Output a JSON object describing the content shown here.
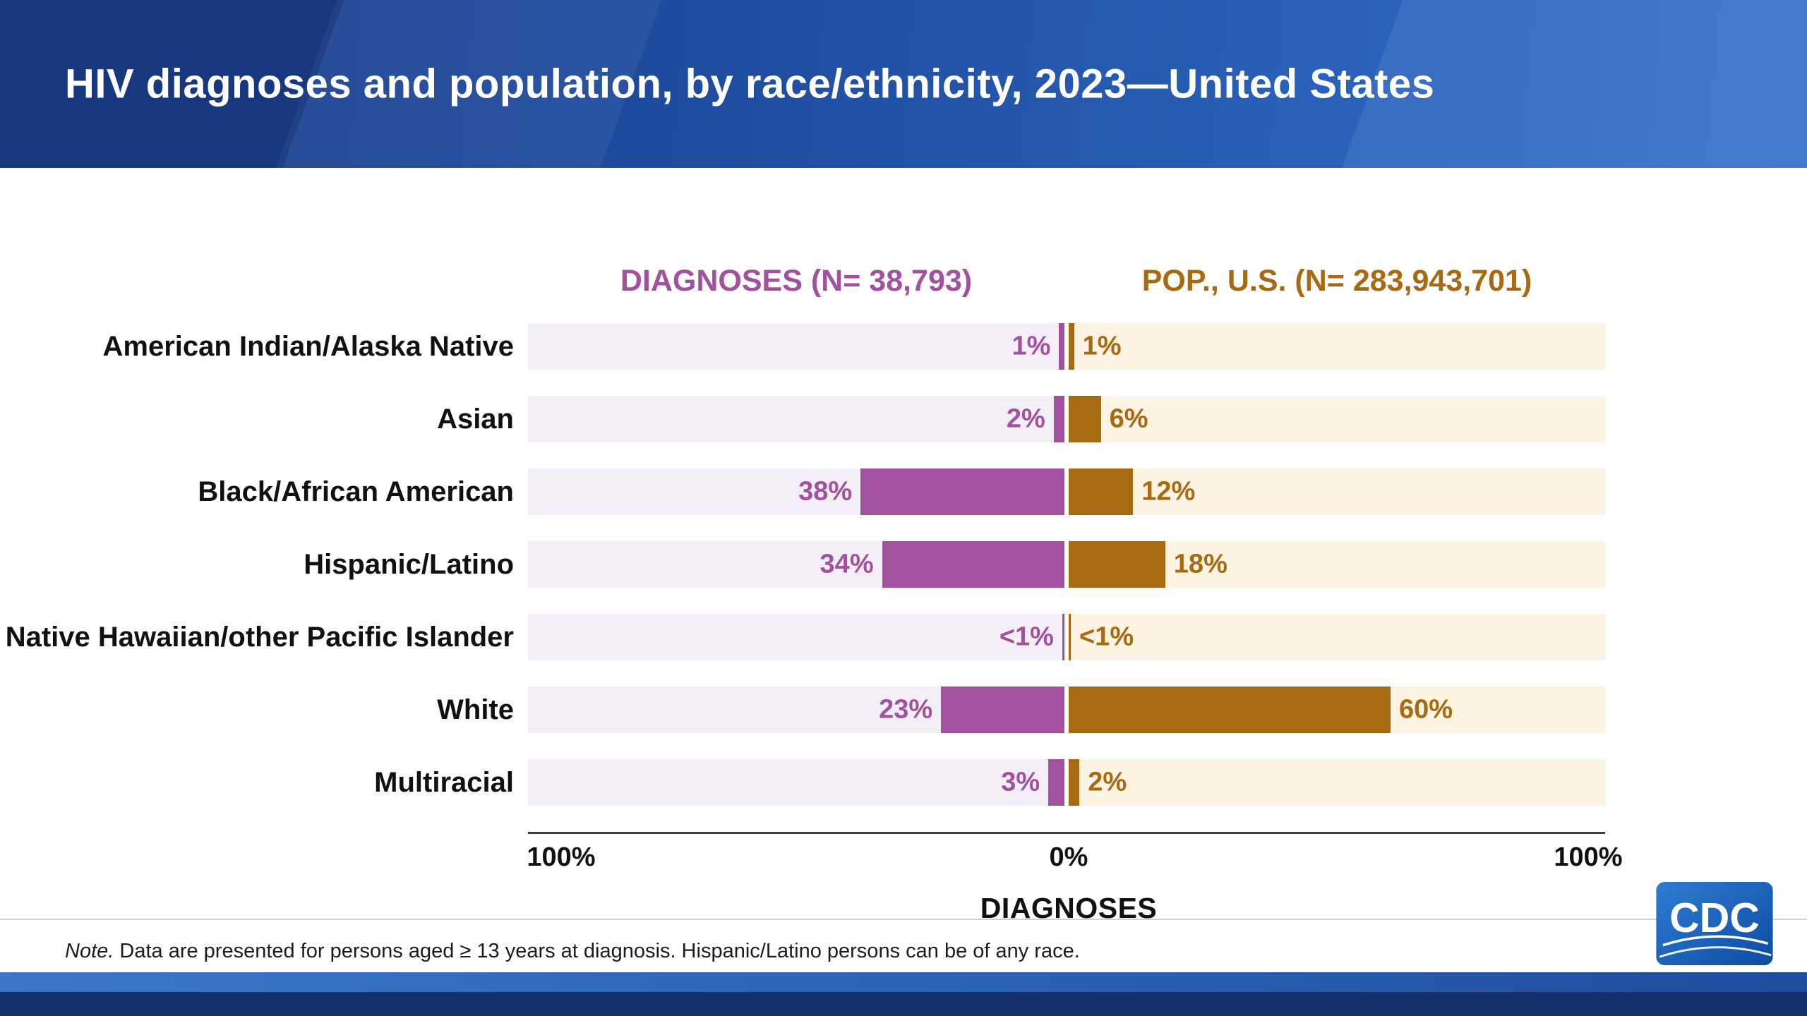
{
  "header": {
    "title": "HIV diagnoses and population, by race/ethnicity, 2023—United States"
  },
  "chart_data": {
    "type": "bar",
    "variant": "diverging-horizontal",
    "left_header": "DIAGNOSES (N= 38,793)",
    "right_header": "POP., U.S. (N= 283,943,701)",
    "categories": [
      "American Indian/Alaska Native",
      "Asian",
      "Black/African American",
      "Hispanic/Latino",
      "Native Hawaiian/other Pacific Islander",
      "White",
      "Multiracial"
    ],
    "series": [
      {
        "name": "Diagnoses",
        "values": [
          1,
          2,
          38,
          34,
          0.4,
          23,
          3
        ],
        "labels": [
          "1%",
          "2%",
          "38%",
          "34%",
          "<1%",
          "23%",
          "3%"
        ],
        "color": "#a2519f",
        "track_color": "#f4eef6"
      },
      {
        "name": "Population",
        "values": [
          1,
          6,
          12,
          18,
          0.4,
          60,
          2
        ],
        "labels": [
          "1%",
          "6%",
          "12%",
          "18%",
          "<1%",
          "60%",
          "2%"
        ],
        "color": "#a86a10",
        "track_color": "#fdf3e2"
      }
    ],
    "axis": {
      "range_percent": [
        0,
        100
      ],
      "left_label": "100%",
      "center_label": "0%",
      "right_label": "100%",
      "bottom_label": "DIAGNOSES"
    }
  },
  "note": {
    "prefix": "Note.",
    "text": " Data are presented for persons aged ≥ 13 years at diagnosis. Hispanic/Latino persons can be of any race."
  },
  "logo": {
    "text": "CDC"
  }
}
